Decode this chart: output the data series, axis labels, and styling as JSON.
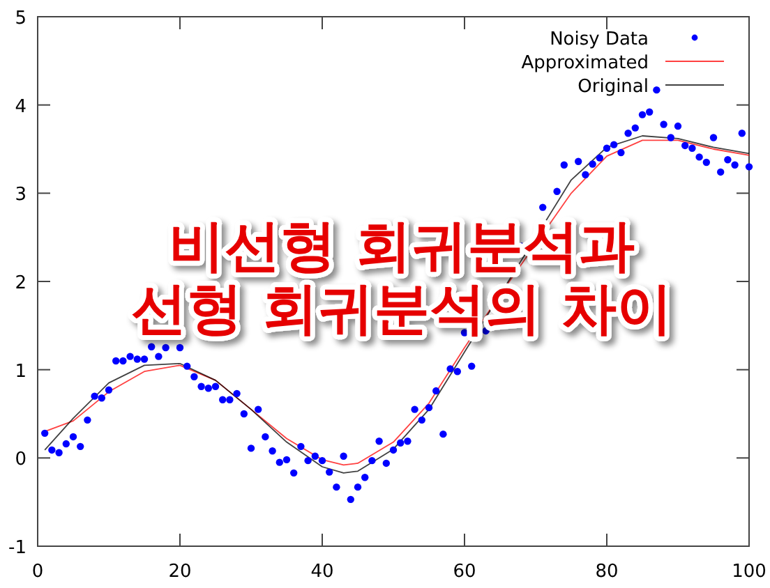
{
  "chart_data": {
    "type": "scatter",
    "title": "비선형 회귀분석과",
    "subtitle": "선형 회귀분석의 차이",
    "xlim": [
      0,
      100
    ],
    "xticks": [
      0,
      20,
      40,
      60,
      80,
      100
    ],
    "ylim": [
      -1,
      5
    ],
    "yticks": [
      -1,
      0,
      1,
      2,
      3,
      4,
      5
    ],
    "grid": false,
    "legend": "top right",
    "series": [
      {
        "name": "Noisy Data",
        "marker": "circle",
        "color": "#0000ff",
        "x": [
          1,
          2,
          3,
          4,
          5,
          6,
          7,
          8,
          9,
          10,
          11,
          12,
          13,
          14,
          15,
          16,
          17,
          18,
          20,
          21,
          22,
          23,
          24,
          25,
          26,
          27,
          28,
          29,
          30,
          31,
          32,
          33,
          34,
          35,
          36,
          37,
          38,
          39,
          40,
          41,
          42,
          43,
          44,
          45,
          46,
          47,
          48,
          49,
          50,
          51,
          52,
          53,
          54,
          55,
          56,
          57,
          58,
          59,
          60,
          61,
          63,
          68,
          71,
          73,
          74,
          76,
          77,
          78,
          79,
          80,
          81,
          82,
          83,
          84,
          85,
          86,
          87,
          88,
          89,
          90,
          91,
          92,
          93,
          94,
          95,
          96,
          97,
          98,
          99,
          100
        ],
        "values": [
          0.28,
          0.09,
          0.06,
          0.16,
          0.24,
          0.13,
          0.43,
          0.7,
          0.68,
          0.77,
          1.1,
          1.1,
          1.15,
          1.12,
          1.12,
          1.26,
          1.15,
          1.25,
          1.25,
          1.04,
          0.92,
          0.81,
          0.79,
          0.81,
          0.66,
          0.66,
          0.73,
          0.5,
          0.11,
          0.55,
          0.24,
          0.08,
          -0.05,
          -0.02,
          -0.17,
          0.13,
          -0.03,
          0.02,
          -0.03,
          -0.16,
          -0.33,
          0.02,
          -0.47,
          -0.33,
          -0.22,
          -0.03,
          0.19,
          -0.06,
          0.09,
          0.17,
          0.19,
          0.55,
          0.43,
          0.57,
          0.76,
          0.27,
          1.01,
          0.98,
          1.42,
          1.04,
          1.44,
          2.4,
          2.84,
          3.02,
          3.32,
          3.36,
          3.21,
          3.33,
          3.4,
          3.51,
          3.55,
          3.46,
          3.68,
          3.74,
          3.89,
          3.92,
          4.17,
          3.78,
          3.63,
          3.76,
          3.54,
          3.51,
          3.41,
          3.35,
          3.63,
          3.24,
          3.38,
          3.32,
          3.68,
          3.3
        ]
      },
      {
        "name": "Approximated",
        "type": "line",
        "marker": "none",
        "color": "#ff0000",
        "x": [
          1,
          5,
          10,
          15,
          20,
          25,
          30,
          35,
          40,
          43,
          45,
          50,
          55,
          60,
          65,
          75,
          80,
          85,
          90,
          95,
          100
        ],
        "values": [
          0.3,
          0.42,
          0.75,
          0.98,
          1.05,
          0.88,
          0.55,
          0.22,
          -0.02,
          -0.08,
          -0.06,
          0.18,
          0.62,
          1.25,
          1.85,
          3.0,
          3.42,
          3.6,
          3.6,
          3.5,
          3.43
        ]
      },
      {
        "name": "Original",
        "type": "line",
        "marker": "none",
        "color": "#000000",
        "x": [
          1,
          5,
          10,
          15,
          20,
          25,
          30,
          35,
          40,
          43,
          45,
          50,
          55,
          60,
          65,
          75,
          80,
          85,
          90,
          95,
          100
        ],
        "values": [
          0.09,
          0.45,
          0.85,
          1.05,
          1.07,
          0.88,
          0.55,
          0.18,
          -0.1,
          -0.17,
          -0.15,
          0.1,
          0.55,
          1.2,
          1.85,
          3.15,
          3.52,
          3.65,
          3.62,
          3.52,
          3.45
        ]
      }
    ]
  }
}
